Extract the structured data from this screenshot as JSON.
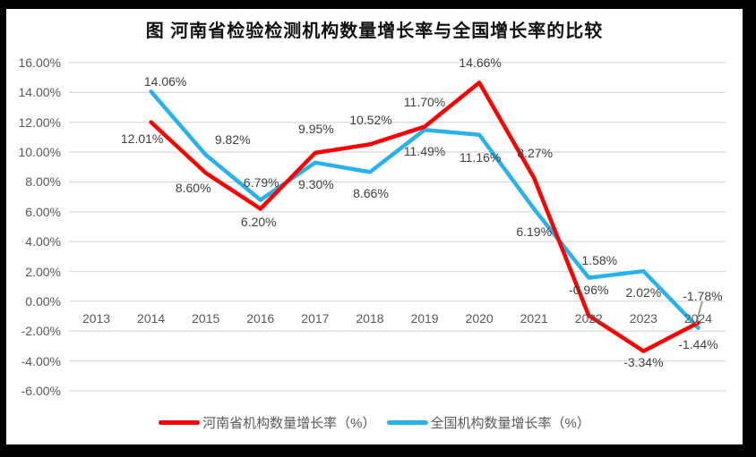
{
  "frame": {
    "border_color": "#000000",
    "canvas_color": "#FFFFFF"
  },
  "chart_data": {
    "type": "line",
    "title": "图  河南省检验检测机构数量增长率与全国增长率的比较",
    "xlabel": "",
    "ylabel": "",
    "categories": [
      "2013",
      "2014",
      "2015",
      "2016",
      "2017",
      "2018",
      "2019",
      "2020",
      "2021",
      "2022",
      "2023",
      "2024"
    ],
    "y_ticks": [
      "16.00%",
      "14.00%",
      "12.00%",
      "10.00%",
      "8.00%",
      "6.00%",
      "4.00%",
      "2.00%",
      "0.00%",
      "-2.00%",
      "-4.00%",
      "-6.00%"
    ],
    "ylim": [
      -6,
      16
    ],
    "grid": true,
    "gridline_color": "#D9D9D9",
    "legend_position": "bottom",
    "series": [
      {
        "name": "河南省机构数量增长率（%）",
        "color": "#FE0000",
        "values": [
          null,
          12.01,
          8.6,
          6.2,
          9.95,
          10.52,
          11.7,
          14.66,
          8.27,
          -0.96,
          -3.34,
          -1.44
        ],
        "labels": [
          "",
          "12.01%",
          "8.60%",
          "6.20%",
          "9.95%",
          "10.52%",
          "11.70%",
          "14.66%",
          "8.27%",
          "-0.96%",
          "-3.34%",
          "-1.44%"
        ]
      },
      {
        "name": "全国机构数量增长率（%）",
        "color": "#28B2EB",
        "values": [
          null,
          14.06,
          9.82,
          6.79,
          9.3,
          8.66,
          11.49,
          11.16,
          6.19,
          1.58,
          2.02,
          -1.78
        ],
        "labels": [
          "",
          "14.06%",
          "9.82%",
          "6.79%",
          "9.30%",
          "8.66%",
          "11.49%",
          "11.16%",
          "6.19%",
          "1.58%",
          "2.02%",
          "-1.78%"
        ]
      }
    ]
  },
  "text_colors": {
    "axis": "#595959",
    "data_label": "#404040",
    "title": "#111111"
  }
}
